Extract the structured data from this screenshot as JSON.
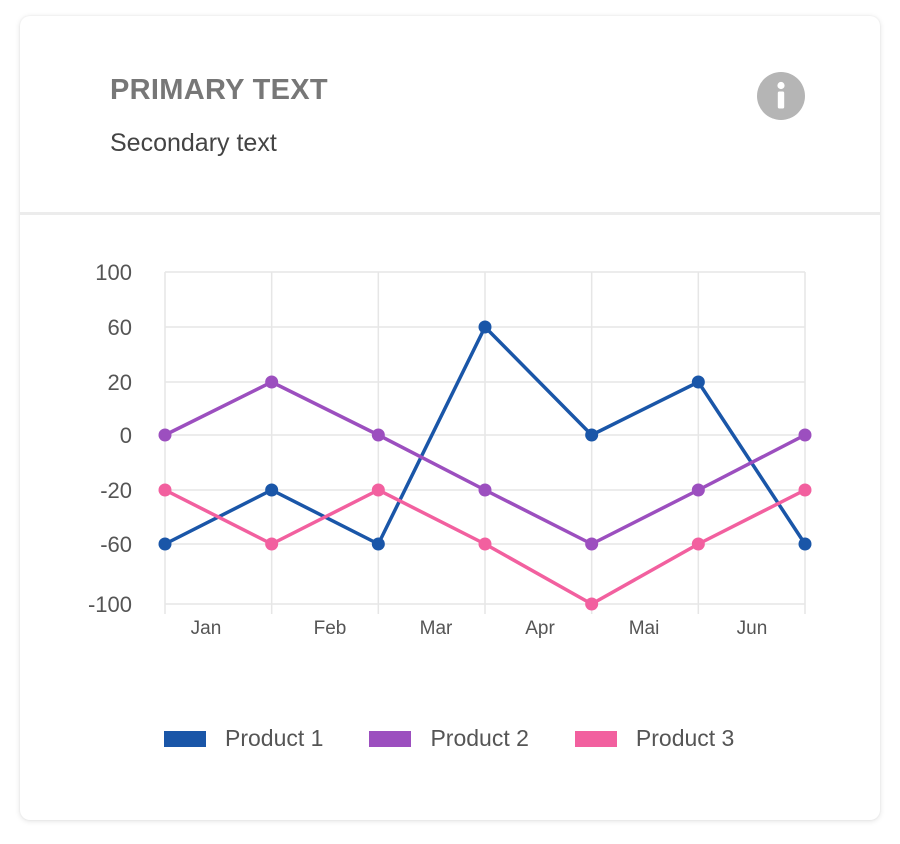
{
  "card": {
    "primary_text": "PRIMARY TEXT",
    "secondary_text": "Secondary text",
    "info_icon": "info-icon"
  },
  "colors": {
    "product1": "#1a56a8",
    "product2": "#9c4fbf",
    "product3": "#f2609f",
    "grid": "#e6e6e6",
    "icon_bg": "#b5b5b5"
  },
  "chart_data": {
    "type": "line",
    "y_tick_labels": [
      "100",
      "60",
      "20",
      "0",
      "-20",
      "-60",
      "-100"
    ],
    "x_tick_labels": [
      "Jan",
      "Feb",
      "Mar",
      "Apr",
      "Mai",
      "Jun"
    ],
    "points_per_series": 7,
    "series": [
      {
        "name": "Product 1",
        "color": "#1a56a8",
        "values": [
          -60,
          -20,
          -60,
          60,
          0,
          20,
          -60
        ]
      },
      {
        "name": "Product 2",
        "color": "#9c4fbf",
        "values": [
          0,
          20,
          0,
          -20,
          -60,
          -20,
          0
        ]
      },
      {
        "name": "Product 3",
        "color": "#f2609f",
        "values": [
          -20,
          -60,
          -20,
          -60,
          -100,
          -60,
          -20
        ]
      }
    ],
    "grid": true,
    "legend_position": "bottom"
  }
}
